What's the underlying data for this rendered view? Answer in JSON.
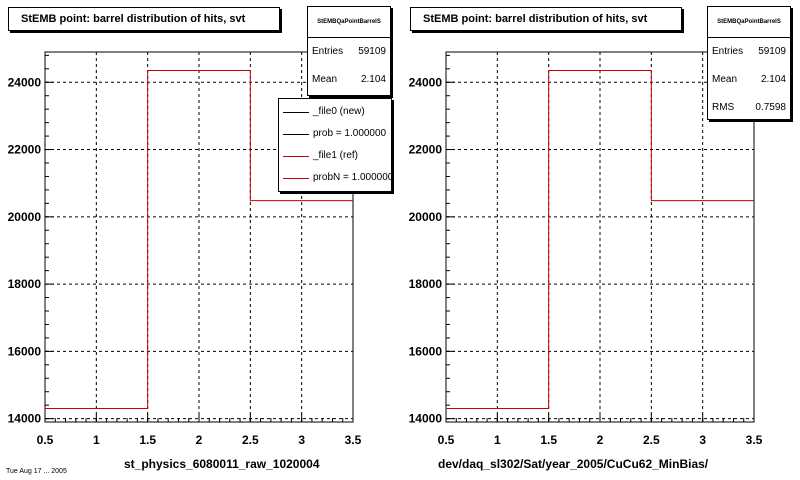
{
  "chart_data": [
    {
      "type": "histogram",
      "title": "StEMB point: barrel distribution of hits, svt",
      "xlabel": "st_physics_6080011_raw_1020004",
      "ylabel": "",
      "xlim": [
        0.5,
        3.5
      ],
      "ylim": [
        13900,
        24900
      ],
      "xticks": [
        0.5,
        1,
        1.5,
        2,
        2.5,
        3,
        3.5
      ],
      "xtick_labels": [
        "0.5",
        "1",
        "1.5",
        "2",
        "2.5",
        "3",
        "3.5"
      ],
      "yticks": [
        14000,
        16000,
        18000,
        20000,
        22000,
        24000
      ],
      "ytick_labels": [
        "14000",
        "16000",
        "18000",
        "20000",
        "22000",
        "24000"
      ],
      "grid": true,
      "bin_edges": [
        0.5,
        1.5,
        2.5,
        3.5
      ],
      "series": [
        {
          "name": "_file1 (ref)",
          "color": "#cc0000",
          "values": [
            14300,
            24350,
            20480
          ]
        }
      ],
      "stats": {
        "name": "StEMBQaPointBarrelS",
        "entries": [
          {
            "label": "Entries",
            "value": "59109"
          },
          {
            "label": "Mean",
            "value": "2.104"
          }
        ]
      },
      "legend": {
        "placement": "top-right",
        "entries": [
          {
            "label": "_file0 (new)",
            "color": "#000000"
          },
          {
            "label": "prob = 1.000000",
            "color": "#000000"
          },
          {
            "label": "_file1 (ref)",
            "color": "#cc0000"
          },
          {
            "label": "probN = 1.000000",
            "color": "#cc0000"
          }
        ]
      }
    },
    {
      "type": "histogram",
      "title": "StEMB point: barrel distribution of hits, svt",
      "xlabel": "dev/daq_sl302/Sat/year_2005/CuCu62_MinBias/",
      "ylabel": "",
      "xlim": [
        0.5,
        3.5
      ],
      "ylim": [
        13900,
        24900
      ],
      "xticks": [
        0.5,
        1,
        1.5,
        2,
        2.5,
        3,
        3.5
      ],
      "xtick_labels": [
        "0.5",
        "1",
        "1.5",
        "2",
        "2.5",
        "3",
        "3.5"
      ],
      "yticks": [
        14000,
        16000,
        18000,
        20000,
        22000,
        24000
      ],
      "ytick_labels": [
        "14000",
        "16000",
        "18000",
        "20000",
        "22000",
        "24000"
      ],
      "grid": true,
      "bin_edges": [
        0.5,
        1.5,
        2.5,
        3.5
      ],
      "series": [
        {
          "name": "",
          "color": "#cc0000",
          "values": [
            14300,
            24350,
            20480
          ]
        }
      ],
      "stats": {
        "name": "StEMBQaPointBarrelS",
        "entries": [
          {
            "label": "Entries",
            "value": "59109"
          },
          {
            "label": "Mean",
            "value": "2.104"
          },
          {
            "label": "RMS",
            "value": "0.7598"
          }
        ]
      }
    }
  ],
  "footer": {
    "corner_text": "Tue Aug 17 ... 2005"
  }
}
